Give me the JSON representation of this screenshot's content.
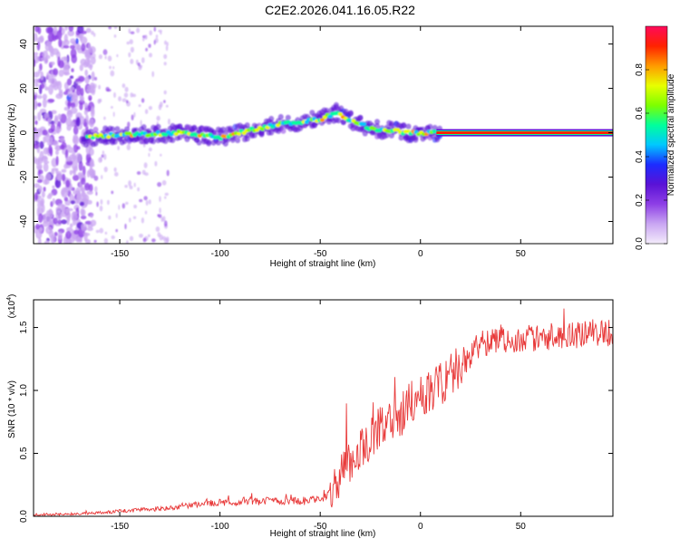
{
  "title": "C2E2.2026.041.16.05.R22",
  "chart_data": [
    {
      "type": "heatmap",
      "name": "spectrogram",
      "xlabel": "Height of straight line (km)",
      "ylabel": "Frequency (Hz)",
      "xlim": [
        -193,
        96
      ],
      "ylim": [
        -50,
        48
      ],
      "x_ticks": [
        -150,
        -100,
        -50,
        0,
        50
      ],
      "y_ticks": [
        -40,
        -20,
        0,
        20,
        40
      ],
      "ridge": {
        "x": [
          -168,
          -150,
          -120,
          -100,
          -90,
          -80,
          -70,
          -60,
          -50,
          -42,
          -35,
          -25,
          -15,
          -5,
          0,
          10,
          20,
          50,
          95
        ],
        "y": [
          -2,
          -1,
          0,
          -2,
          0,
          2,
          4,
          5,
          6,
          9,
          6,
          2,
          1,
          0,
          0,
          0,
          0,
          0,
          0
        ]
      },
      "colorbar": {
        "label": "Normalized spectral amplitude",
        "range": [
          0,
          1
        ],
        "ticks": [
          "0.0",
          "0.2",
          "0.4",
          "0.6",
          "0.8"
        ],
        "tick_values": [
          0.0,
          0.2,
          0.4,
          0.6,
          0.8
        ],
        "colors": [
          "#f4ecfb",
          "#c9a6f2",
          "#8e3fe6",
          "#5a12d6",
          "#1c2cff",
          "#00c8ff",
          "#00ff9c",
          "#7dff00",
          "#e8ff00",
          "#ff9a00",
          "#ff2200",
          "#ff0a5a"
        ]
      }
    },
    {
      "type": "line",
      "name": "snr",
      "xlabel": "Height of straight line (km)",
      "ylabel": "SNR (10 * v/v)",
      "scale_label": "(x10",
      "scale_exp": "4",
      "scale_close": ")",
      "xlim": [
        -193,
        96
      ],
      "ylim": [
        0,
        1.72
      ],
      "x_ticks": [
        -150,
        -100,
        -50,
        0,
        50
      ],
      "y_ticks": [
        0.0,
        0.5,
        1.0,
        1.5
      ],
      "y_tick_labels": [
        "0.0",
        "0.5",
        "1.0",
        "1.5"
      ],
      "series_color": "#e83a3a",
      "envelope": {
        "x": [
          -193,
          -170,
          -150,
          -130,
          -110,
          -90,
          -70,
          -60,
          -50,
          -45,
          -40,
          -35,
          -30,
          -25,
          -20,
          -15,
          -10,
          -5,
          0,
          5,
          10,
          15,
          20,
          25,
          30,
          40,
          60,
          80,
          95
        ],
        "y": [
          0.01,
          0.02,
          0.04,
          0.06,
          0.1,
          0.12,
          0.12,
          0.12,
          0.13,
          0.2,
          0.3,
          0.45,
          0.55,
          0.62,
          0.7,
          0.75,
          0.8,
          0.9,
          0.95,
          1.0,
          1.05,
          1.12,
          1.2,
          1.3,
          1.38,
          1.4,
          1.42,
          1.44,
          1.46
        ]
      }
    }
  ]
}
